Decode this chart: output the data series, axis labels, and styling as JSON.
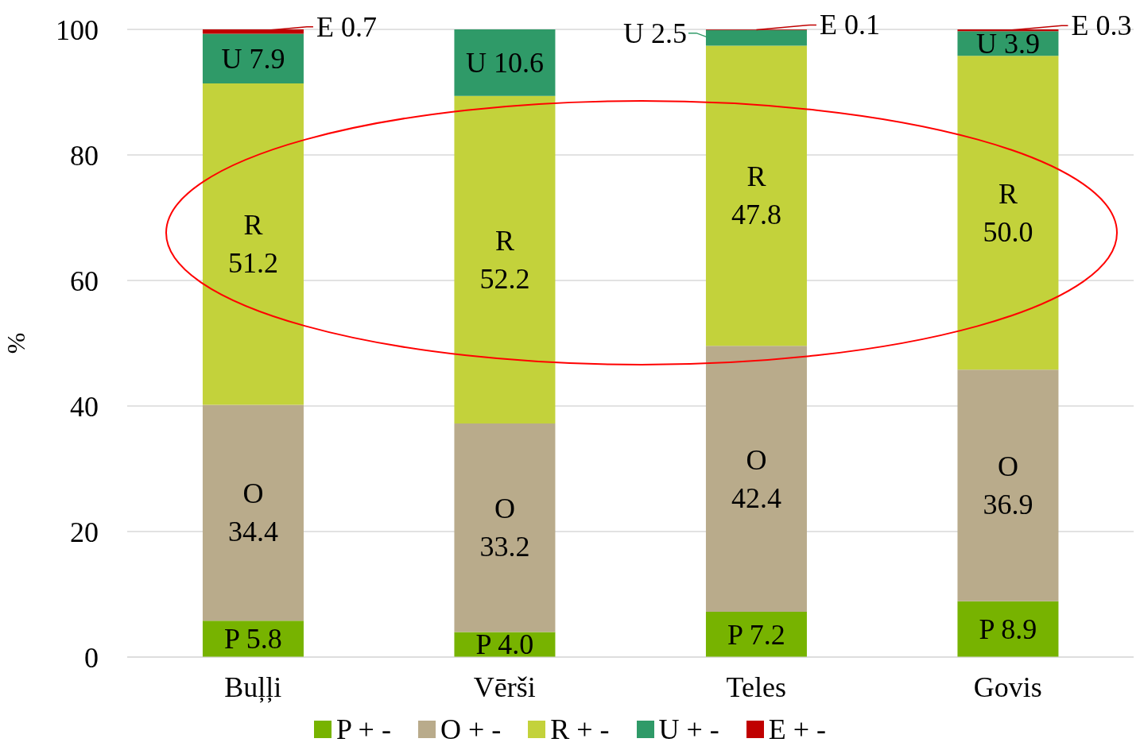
{
  "chart_data": {
    "type": "bar",
    "stacked": true,
    "ylabel": "%",
    "categories": [
      "Buļļi",
      "Vērši",
      "Teles",
      "Govis"
    ],
    "series": [
      {
        "name": "P + -",
        "color": "#77b300",
        "values": [
          5.8,
          4.0,
          7.2,
          8.9
        ],
        "value_labels": [
          "P 5.8",
          "P 4.0",
          "P 7.2",
          "P 8.9"
        ]
      },
      {
        "name": "O + -",
        "color": "#b9ab8b",
        "values": [
          34.4,
          33.2,
          42.4,
          36.9
        ],
        "value_labels": [
          "O\n34.4",
          "O\n33.2",
          "O\n42.4",
          "O\n36.9"
        ]
      },
      {
        "name": "R + -",
        "color": "#c3d23b",
        "values": [
          51.2,
          52.2,
          47.8,
          50.0
        ],
        "value_labels": [
          "R\n51.2",
          "R\n52.2",
          "R\n47.8",
          "R\n50.0"
        ]
      },
      {
        "name": "U + -",
        "color": "#2f9a68",
        "values": [
          7.9,
          10.6,
          2.5,
          3.9
        ],
        "value_labels": [
          "U 7.9",
          "U 10.6",
          "U 2.5",
          "U 3.9"
        ]
      },
      {
        "name": "E + -",
        "color": "#c00000",
        "values": [
          0.7,
          null,
          0.1,
          0.3
        ],
        "value_labels": [
          "E 0.7",
          null,
          "E 0.1",
          "E 0.3"
        ]
      }
    ],
    "ylim": [
      0,
      100
    ],
    "yticks": [
      0,
      20,
      40,
      60,
      80,
      100
    ],
    "grid": "y",
    "legend": "bottom"
  }
}
